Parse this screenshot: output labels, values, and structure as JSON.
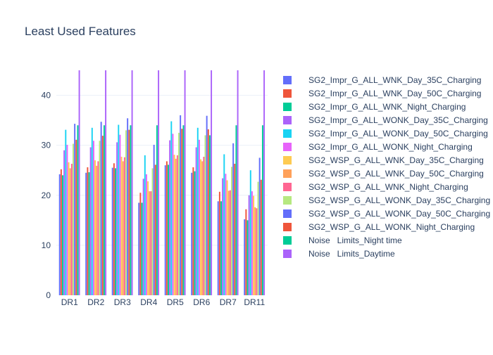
{
  "chart_data": {
    "type": "bar",
    "title": "Least Used Features",
    "xlabel": "",
    "ylabel": "",
    "ylim": [
      0,
      45
    ],
    "yticks": [
      0,
      10,
      20,
      30,
      40
    ],
    "grid": true,
    "legend_position": "right",
    "categories": [
      "DR1",
      "DR2",
      "DR3",
      "DR4",
      "DR5",
      "DR6",
      "DR7",
      "DR11"
    ],
    "series": [
      {
        "name": "SG2_Impr_G_ALL_WNK_Day_35C_Charging",
        "color": "#636efa",
        "values": [
          24.2,
          24.5,
          25.5,
          18.5,
          26.0,
          24.5,
          18.8,
          15.2
        ]
      },
      {
        "name": "SG2_Impr_G_ALL_WNK_Day_50C_Charging",
        "color": "#EF553B",
        "values": [
          25.2,
          25.6,
          26.4,
          20.5,
          26.8,
          25.6,
          20.7,
          17.2
        ]
      },
      {
        "name": "SG2_Impr_G_ALL_WNK_Night_Charging",
        "color": "#00cc96",
        "values": [
          24.0,
          24.6,
          25.4,
          18.5,
          26.1,
          24.8,
          18.8,
          15.0
        ]
      },
      {
        "name": "SG2_Impr_G_ALL_WONK_Day_35C_Charging",
        "color": "#ab63fa",
        "values": [
          29.0,
          29.6,
          30.6,
          23.3,
          31.0,
          29.6,
          23.4,
          20.0
        ]
      },
      {
        "name": "SG2_Impr_G_ALL_WONK_Day_50C_Charging",
        "color": "#19d3f3",
        "values": [
          33.1,
          33.5,
          34.1,
          28.0,
          34.8,
          33.5,
          28.2,
          25.0
        ]
      },
      {
        "name": "SG2_Impr_G_ALL_WONK_Night_Charging",
        "color": "#e763fa",
        "values": [
          30.1,
          30.9,
          32.1,
          24.2,
          32.3,
          31.1,
          24.3,
          20.8
        ]
      },
      {
        "name": "SG2_WSP_G_ALL_WNK_Day_35C_Charging",
        "color": "#FECB52",
        "values": [
          26.6,
          27.0,
          27.7,
          22.8,
          28.1,
          27.2,
          23.0,
          19.9
        ]
      },
      {
        "name": "SG2_WSP_G_ALL_WNK_Day_50C_Charging",
        "color": "#FFA15A",
        "values": [
          25.4,
          25.9,
          26.8,
          20.8,
          27.3,
          26.8,
          20.9,
          17.6
        ]
      },
      {
        "name": "SG2_WSP_G_ALL_WNK_Night_Charging",
        "color": "#FF6692",
        "values": [
          26.3,
          26.8,
          27.6,
          20.8,
          28.0,
          27.7,
          21.0,
          17.4
        ]
      },
      {
        "name": "SG2_WSP_G_ALL_WONK_Day_35C_Charging",
        "color": "#B6E880",
        "values": [
          30.3,
          30.9,
          33.0,
          25.4,
          32.5,
          32.0,
          25.7,
          22.7
        ]
      },
      {
        "name": "SG2_WSP_G_ALL_WONK_Day_50C_Charging",
        "color": "#636efa",
        "values": [
          34.3,
          34.7,
          35.4,
          30.1,
          36.0,
          35.9,
          30.4,
          27.5
        ]
      },
      {
        "name": "SG2_WSP_G_ALL_WONK_Night_Charging",
        "color": "#EF553B",
        "values": [
          31.1,
          31.9,
          33.1,
          26.1,
          33.3,
          33.2,
          26.3,
          23.1
        ]
      },
      {
        "name": "Noise   Limits_Night time",
        "color": "#00cc96",
        "values": [
          34.0,
          34.0,
          34.0,
          34.0,
          34.0,
          32.0,
          34.0,
          34.0
        ]
      },
      {
        "name": "Noise   Limits_Daytime",
        "color": "#ab63fa",
        "values": [
          45.0,
          45.0,
          45.0,
          45.0,
          45.0,
          45.0,
          45.0,
          45.0
        ]
      }
    ]
  }
}
